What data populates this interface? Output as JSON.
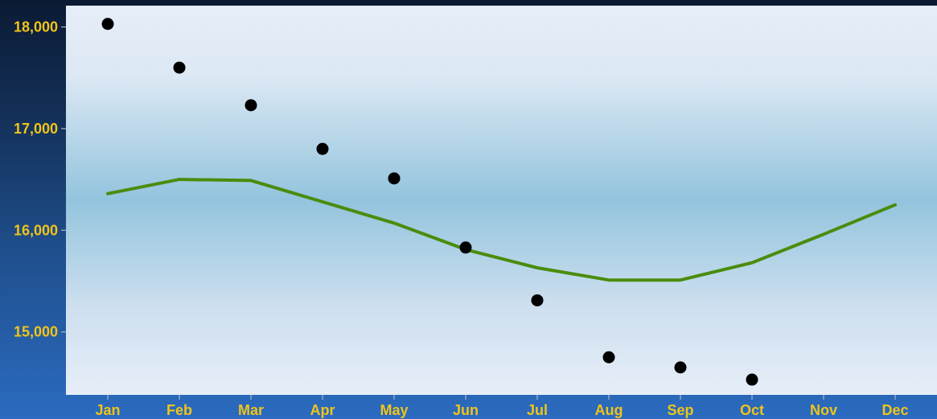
{
  "chart_data": {
    "type": "scatter",
    "categories": [
      "Jan",
      "Feb",
      "Mar",
      "Apr",
      "May",
      "Jun",
      "Jul",
      "Aug",
      "Sep",
      "Oct",
      "Nov",
      "Dec"
    ],
    "series": [
      {
        "type": "scatter",
        "color": "#000000",
        "values": [
          18030,
          17600,
          17230,
          16800,
          16510,
          15830,
          15310,
          14750,
          14650,
          14530,
          null,
          null
        ]
      },
      {
        "type": "line",
        "color": "#4a8c0c",
        "values": [
          16360,
          16500,
          16490,
          16280,
          16070,
          15810,
          15630,
          15510,
          15510,
          15680,
          15960,
          16250
        ]
      }
    ],
    "yticks": [
      15000,
      16000,
      17000,
      18000
    ],
    "ytick_labels": [
      "15,000",
      "16,000",
      "17,000",
      "18,000"
    ],
    "ylim": [
      14380,
      18210
    ],
    "grid": false,
    "title": "",
    "xlabel": "",
    "ylabel": ""
  }
}
